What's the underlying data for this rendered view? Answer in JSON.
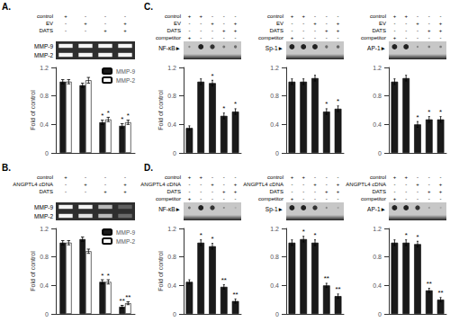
{
  "chart_data": [
    {
      "type": "bar",
      "title": "A.",
      "conditions": [
        {
          "name": "control",
          "marks": [
            "+",
            "-",
            "-",
            "-"
          ]
        },
        {
          "name": "EV",
          "marks": [
            "-",
            "+",
            "-",
            "+"
          ]
        },
        {
          "name": "DATS",
          "marks": [
            "-",
            "-",
            "+",
            "+"
          ]
        }
      ],
      "gel": [
        {
          "label": "MMP-9",
          "intensities": [
            1.0,
            1.0,
            1.0,
            1.0
          ]
        },
        {
          "label": "MMP-2",
          "intensities": [
            1.0,
            1.0,
            1.0,
            1.0
          ]
        }
      ],
      "categories": [
        null,
        null,
        null,
        null
      ],
      "series": [
        {
          "name": "MMP-9",
          "color": "#1a1a1a",
          "values": [
            1.0,
            0.95,
            0.43,
            0.38
          ],
          "errors": [
            0.03,
            0.03,
            0.03,
            0.03
          ],
          "annotations": [
            null,
            null,
            "*",
            "*"
          ]
        },
        {
          "name": "MMP-2",
          "color": "#ffffff",
          "values": [
            1.0,
            1.02,
            0.47,
            0.43
          ],
          "errors": [
            0.03,
            0.04,
            0.03,
            0.03
          ],
          "annotations": [
            null,
            null,
            "*",
            "*"
          ]
        }
      ],
      "ylabel": "Fold of control",
      "ylim": [
        0,
        1.2
      ],
      "yticks": [
        0,
        0.4,
        0.8,
        1.2
      ],
      "grid": false,
      "legend": "upper right",
      "tick_labels": "y"
    },
    {
      "type": "bar",
      "title": "B.",
      "conditions": [
        {
          "name": "control",
          "marks": [
            "+",
            "-",
            "-",
            "-"
          ]
        },
        {
          "name": "ANGPTL4 cDNA",
          "marks": [
            "-",
            "+",
            "-",
            "+"
          ]
        },
        {
          "name": "DATS",
          "marks": [
            "-",
            "-",
            "+",
            "+"
          ]
        }
      ],
      "gel": [
        {
          "label": "MMP-9",
          "intensities": [
            1.0,
            1.0,
            0.7,
            0.25
          ]
        },
        {
          "label": "MMP-2",
          "intensities": [
            1.0,
            0.9,
            0.7,
            0.3
          ]
        }
      ],
      "categories": [
        null,
        null,
        null,
        null
      ],
      "series": [
        {
          "name": "MMP-9",
          "color": "#1a1a1a",
          "values": [
            1.0,
            1.05,
            0.45,
            0.1
          ],
          "errors": [
            0.03,
            0.03,
            0.03,
            0.02
          ],
          "annotations": [
            null,
            null,
            "*",
            "**"
          ]
        },
        {
          "name": "MMP-2",
          "color": "#ffffff",
          "values": [
            1.0,
            0.88,
            0.45,
            0.15
          ],
          "errors": [
            0.03,
            0.03,
            0.03,
            0.02
          ],
          "annotations": [
            null,
            null,
            "*",
            "**"
          ]
        }
      ],
      "ylabel": "Fold of control",
      "ylim": [
        0,
        1.2
      ],
      "yticks": [
        0,
        0.4,
        0.8,
        1.2
      ],
      "grid": false,
      "legend": "upper right",
      "tick_labels": "y"
    },
    {
      "type": "bar",
      "title": "C.",
      "conditions": [
        {
          "name": "control",
          "marks": [
            "+",
            "+",
            "-",
            "-",
            "-"
          ]
        },
        {
          "name": "EV",
          "marks": [
            "-",
            "-",
            "+",
            "-",
            "+"
          ]
        },
        {
          "name": "DATS",
          "marks": [
            "-",
            "-",
            "-",
            "+",
            "+"
          ]
        },
        {
          "name": "competitor",
          "marks": [
            "+",
            "-",
            "-",
            "-",
            "-"
          ]
        }
      ],
      "gel": [
        {
          "label": "NF-κB►",
          "intensities": [
            0.4,
            1.0,
            0.9,
            0.5,
            0.55
          ]
        }
      ],
      "categories": [
        null,
        null,
        null,
        null,
        null
      ],
      "values": [
        0.35,
        1.0,
        0.98,
        0.52,
        0.58
      ],
      "errors": [
        0.03,
        0.04,
        0.04,
        0.04,
        0.04
      ],
      "annotations": [
        null,
        null,
        "*",
        "*",
        "*"
      ],
      "color": "#1a1a1a",
      "ylabel": "Fold of control",
      "ylim": [
        0,
        1.2
      ],
      "yticks": [
        0,
        0.4,
        0.8,
        1.2
      ],
      "grid": false,
      "tick_labels": "y"
    },
    {
      "type": "bar",
      "conditions": [
        {
          "name": "control",
          "marks": [
            "+",
            "+",
            "-",
            "-",
            "-"
          ]
        },
        {
          "name": "EV",
          "marks": [
            "-",
            "-",
            "+",
            "-",
            "+"
          ]
        },
        {
          "name": "DATS",
          "marks": [
            "-",
            "-",
            "-",
            "+",
            "+"
          ]
        },
        {
          "name": "competitor",
          "marks": [
            "+",
            "-",
            "-",
            "-",
            "-"
          ]
        }
      ],
      "gel": [
        {
          "label": "Sp-1►",
          "intensities": [
            1.0,
            1.0,
            1.0,
            0.55,
            0.6
          ]
        }
      ],
      "categories": [
        null,
        null,
        null,
        null,
        null
      ],
      "values": [
        1.0,
        1.0,
        1.05,
        0.58,
        0.62
      ],
      "errors": [
        0.04,
        0.04,
        0.04,
        0.04,
        0.04
      ],
      "annotations": [
        null,
        null,
        null,
        "*",
        "*"
      ],
      "color": "#1a1a1a",
      "ylim": [
        0,
        1.2
      ],
      "yticks": [
        0,
        0.4,
        0.8,
        1.2
      ],
      "grid": false,
      "tick_labels": "y"
    },
    {
      "type": "bar",
      "conditions": [
        {
          "name": "control",
          "marks": [
            "+",
            "+",
            "-",
            "-",
            "-"
          ]
        },
        {
          "name": "EV",
          "marks": [
            "-",
            "-",
            "+",
            "-",
            "+"
          ]
        },
        {
          "name": "DATS",
          "marks": [
            "-",
            "-",
            "-",
            "+",
            "+"
          ]
        },
        {
          "name": "competitor",
          "marks": [
            "+",
            "-",
            "-",
            "-",
            "-"
          ]
        }
      ],
      "gel": [
        {
          "label": "AP-1►",
          "intensities": [
            1.0,
            1.0,
            0.38,
            0.45,
            0.45
          ]
        }
      ],
      "categories": [
        null,
        null,
        null,
        null,
        null
      ],
      "values": [
        1.0,
        1.05,
        0.4,
        0.47,
        0.47
      ],
      "errors": [
        0.04,
        0.04,
        0.04,
        0.04,
        0.04
      ],
      "annotations": [
        null,
        null,
        "*",
        "*",
        "*"
      ],
      "color": "#1a1a1a",
      "ylim": [
        0,
        1.2
      ],
      "yticks": [
        0,
        0.4,
        0.8,
        1.2
      ],
      "grid": false,
      "tick_labels": "y"
    },
    {
      "type": "bar",
      "title": "D.",
      "conditions": [
        {
          "name": "control",
          "marks": [
            "+",
            "+",
            "-",
            "-",
            "-"
          ]
        },
        {
          "name": "ANGPTL4 cDNA",
          "marks": [
            "-",
            "-",
            "+",
            "-",
            "+"
          ]
        },
        {
          "name": "DATS",
          "marks": [
            "-",
            "-",
            "-",
            "+",
            "+"
          ]
        },
        {
          "name": "competitor",
          "marks": [
            "+",
            "-",
            "-",
            "-",
            "-"
          ]
        }
      ],
      "gel": [
        {
          "label": "NF-κB►",
          "intensities": [
            0.5,
            1.0,
            0.9,
            0.35,
            0.15
          ]
        }
      ],
      "categories": [
        null,
        null,
        null,
        null,
        null
      ],
      "values": [
        0.45,
        1.0,
        0.95,
        0.38,
        0.18
      ],
      "errors": [
        0.03,
        0.04,
        0.04,
        0.03,
        0.03
      ],
      "annotations": [
        null,
        "*",
        "*",
        "**",
        "**"
      ],
      "color": "#1a1a1a",
      "ylabel": "Fold of control",
      "ylim": [
        0,
        1.2
      ],
      "yticks": [
        0,
        0.4,
        0.8,
        1.2
      ],
      "grid": false,
      "tick_labels": "y"
    },
    {
      "type": "bar",
      "conditions": [
        {
          "name": "control",
          "marks": [
            "+",
            "+",
            "-",
            "-",
            "-"
          ]
        },
        {
          "name": "ANGPTL4 cDNA",
          "marks": [
            "-",
            "-",
            "+",
            "-",
            "+"
          ]
        },
        {
          "name": "DATS",
          "marks": [
            "-",
            "-",
            "-",
            "+",
            "+"
          ]
        },
        {
          "name": "competitor",
          "marks": [
            "+",
            "-",
            "-",
            "-",
            "-"
          ]
        }
      ],
      "gel": [
        {
          "label": "Sp-1►",
          "intensities": [
            1.0,
            1.0,
            0.9,
            0.38,
            0.22
          ]
        }
      ],
      "categories": [
        null,
        null,
        null,
        null,
        null
      ],
      "values": [
        1.0,
        1.05,
        1.0,
        0.4,
        0.25
      ],
      "errors": [
        0.04,
        0.04,
        0.04,
        0.03,
        0.03
      ],
      "annotations": [
        null,
        "*",
        "*",
        "**",
        "**"
      ],
      "color": "#1a1a1a",
      "ylim": [
        0,
        1.2
      ],
      "yticks": [
        0,
        0.4,
        0.8,
        1.2
      ],
      "grid": false,
      "tick_labels": "y"
    },
    {
      "type": "bar",
      "conditions": [
        {
          "name": "control",
          "marks": [
            "+",
            "+",
            "-",
            "-",
            "-"
          ]
        },
        {
          "name": "ANGPTL4 cDNA",
          "marks": [
            "-",
            "-",
            "+",
            "-",
            "+"
          ]
        },
        {
          "name": "DATS",
          "marks": [
            "-",
            "-",
            "-",
            "+",
            "+"
          ]
        },
        {
          "name": "competitor",
          "marks": [
            "+",
            "-",
            "-",
            "-",
            "-"
          ]
        }
      ],
      "gel": [
        {
          "label": "AP-1►",
          "intensities": [
            1.0,
            1.0,
            0.9,
            0.3,
            0.18
          ]
        }
      ],
      "categories": [
        null,
        null,
        null,
        null,
        null
      ],
      "values": [
        1.0,
        1.0,
        0.98,
        0.33,
        0.2
      ],
      "errors": [
        0.04,
        0.04,
        0.04,
        0.03,
        0.03
      ],
      "annotations": [
        null,
        "*",
        "*",
        "**",
        "**"
      ],
      "color": "#1a1a1a",
      "ylim": [
        0,
        1.2
      ],
      "yticks": [
        0,
        0.4,
        0.8,
        1.2
      ],
      "grid": false,
      "tick_labels": "y"
    }
  ]
}
